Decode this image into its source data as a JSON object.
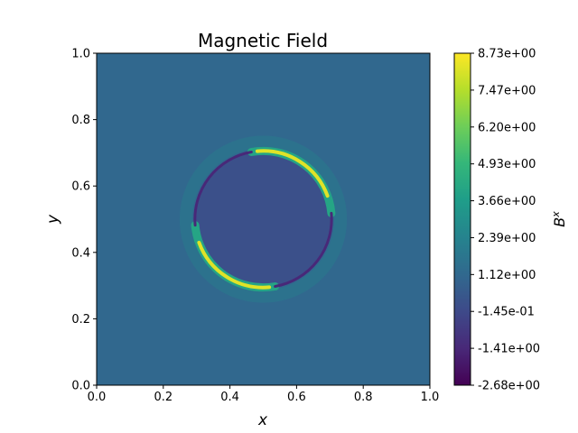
{
  "chart_data": {
    "type": "heatmap",
    "title": "Magnetic Field",
    "xlabel": "x",
    "ylabel": "y",
    "xlim": [
      0.0,
      1.0
    ],
    "ylim": [
      0.0,
      1.0
    ],
    "x_ticks": [
      "0.0",
      "0.2",
      "0.4",
      "0.6",
      "0.8",
      "1.0"
    ],
    "y_ticks": [
      "0.0",
      "0.2",
      "0.4",
      "0.6",
      "0.8",
      "1.0"
    ],
    "colormap": "viridis",
    "colorbar": {
      "label": "B^x",
      "label_base": "B",
      "label_sup": "x",
      "vmin": -2.68,
      "vmax": 8.73,
      "ticks": [
        "-2.68e+00",
        "-1.41e+00",
        "-1.45e-01",
        "1.12e+00",
        "2.39e+00",
        "3.66e+00",
        "4.93e+00",
        "6.20e+00",
        "7.47e+00",
        "8.73e+00"
      ]
    },
    "field": {
      "background_value": 1.12,
      "interior_value": 0.15,
      "ring_center": [
        0.5,
        0.5
      ],
      "ring_radius": 0.205,
      "ring_peak_value": 8.73,
      "ring_min_value": -2.68
    },
    "grid": false
  }
}
